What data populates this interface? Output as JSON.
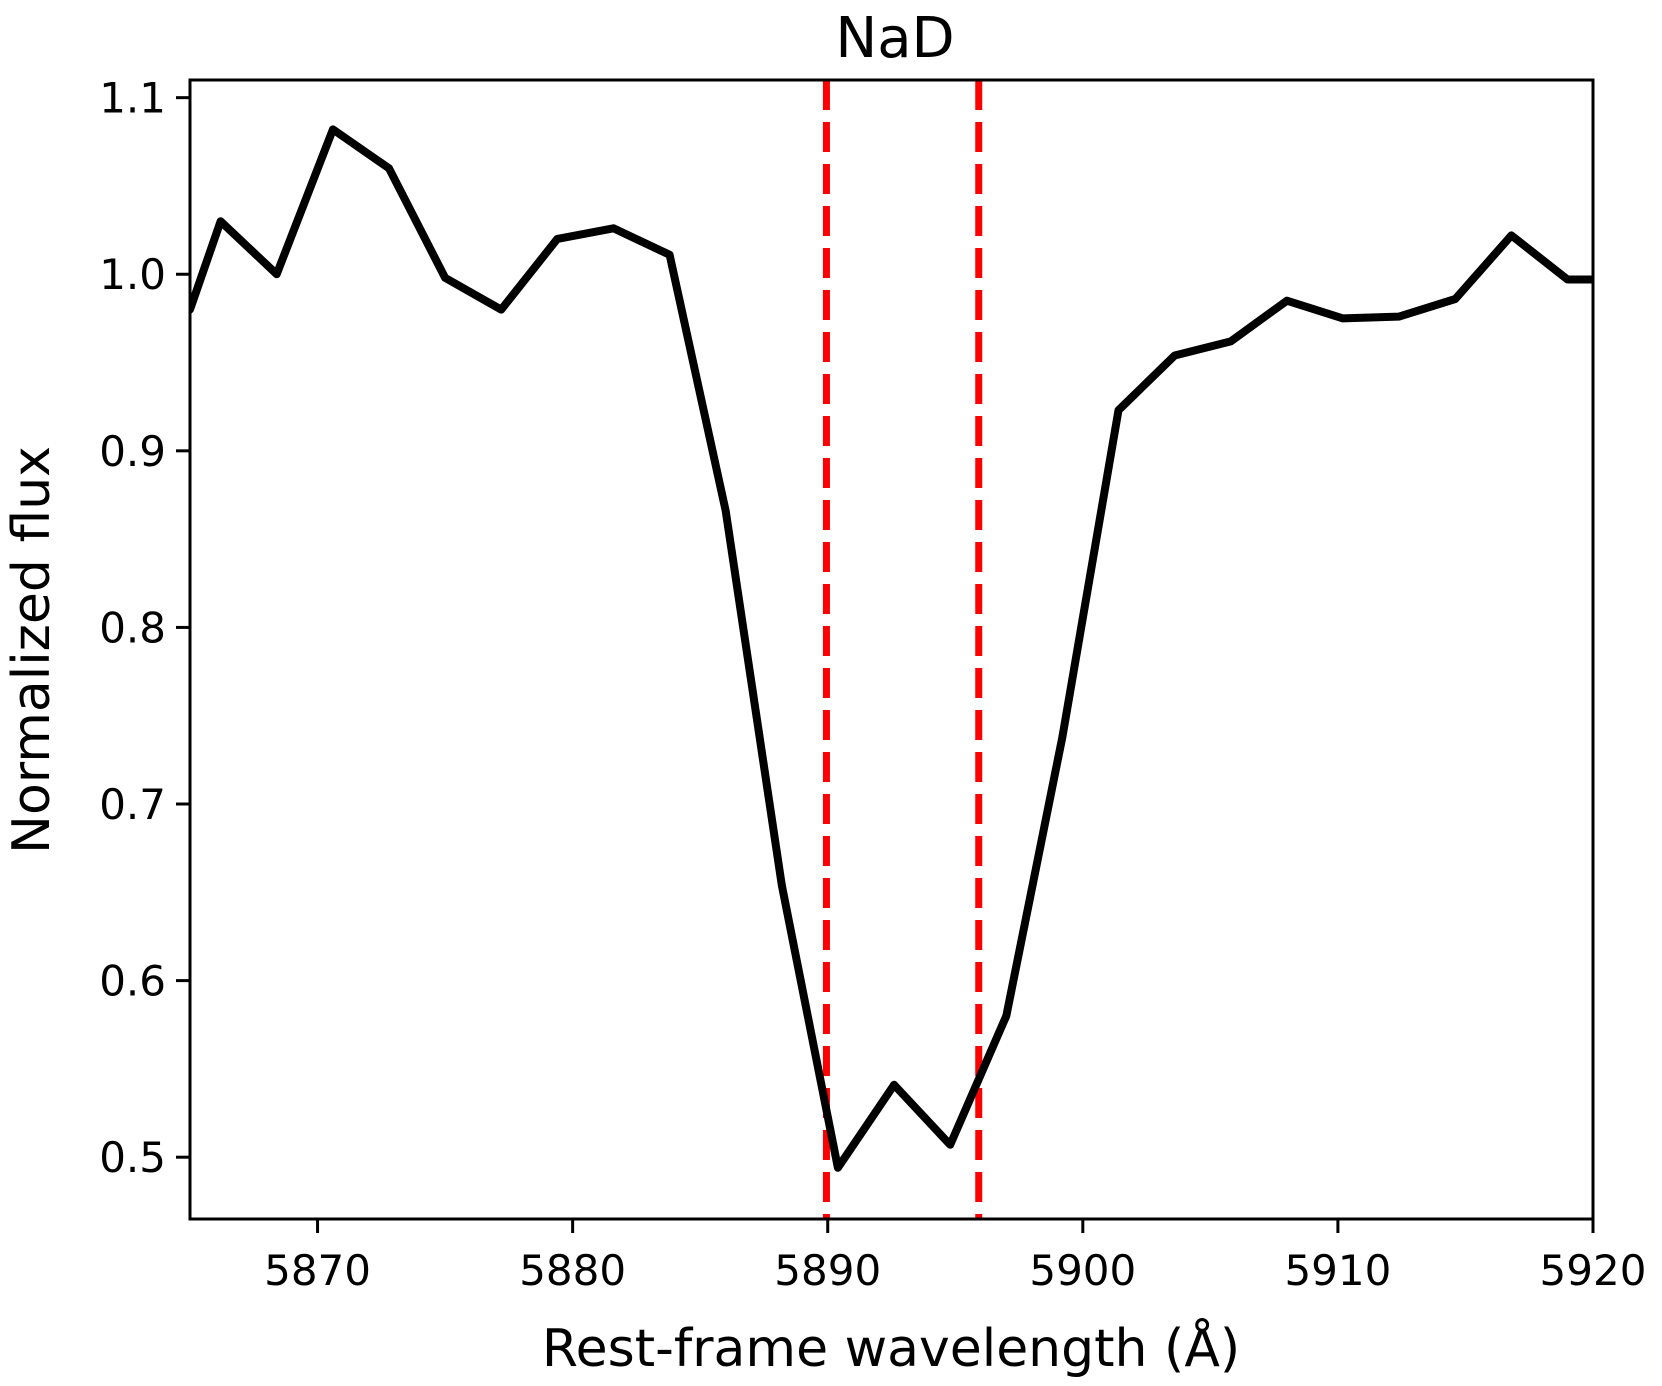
{
  "chart_data": {
    "type": "line",
    "title": "NaD",
    "xlabel": "Rest-frame wavelength (Å)",
    "ylabel": "Normalized flux",
    "xlim": [
      5865,
      5920
    ],
    "ylim": [
      0.465,
      1.11
    ],
    "xticks": [
      5870,
      5880,
      5890,
      5900,
      5910,
      5920
    ],
    "xtick_labels": [
      "5870",
      "5880",
      "5890",
      "5900",
      "5910",
      "5920"
    ],
    "yticks": [
      0.5,
      0.6,
      0.7,
      0.8,
      0.9,
      1.0,
      1.1
    ],
    "ytick_labels": [
      "0.5",
      "0.6",
      "0.7",
      "0.8",
      "0.9",
      "1.0",
      "1.1"
    ],
    "grid": false,
    "series": [
      {
        "color": "#000000",
        "style": "solid",
        "x": [
          5865,
          5866.2,
          5868.4,
          5870.6,
          5872.8,
          5875.0,
          5877.2,
          5879.4,
          5881.6,
          5883.8,
          5886.0,
          5888.2,
          5890.4,
          5892.6,
          5894.8,
          5897.0,
          5899.2,
          5901.4,
          5903.6,
          5905.8,
          5908.0,
          5910.2,
          5912.4,
          5914.6,
          5916.8,
          5919.0,
          5920
        ],
        "y": [
          0.98,
          1.03,
          1.0,
          1.082,
          1.06,
          0.998,
          0.98,
          1.02,
          1.026,
          1.011,
          0.866,
          0.654,
          0.494,
          0.541,
          0.507,
          0.58,
          0.738,
          0.923,
          0.954,
          0.962,
          0.985,
          0.975,
          0.976,
          0.986,
          1.022,
          0.997,
          0.997
        ]
      }
    ],
    "vlines": [
      {
        "x": 5889.95,
        "color": "#ff0000",
        "style": "dashed"
      },
      {
        "x": 5895.92,
        "color": "#ff0000",
        "style": "dashed"
      }
    ]
  }
}
